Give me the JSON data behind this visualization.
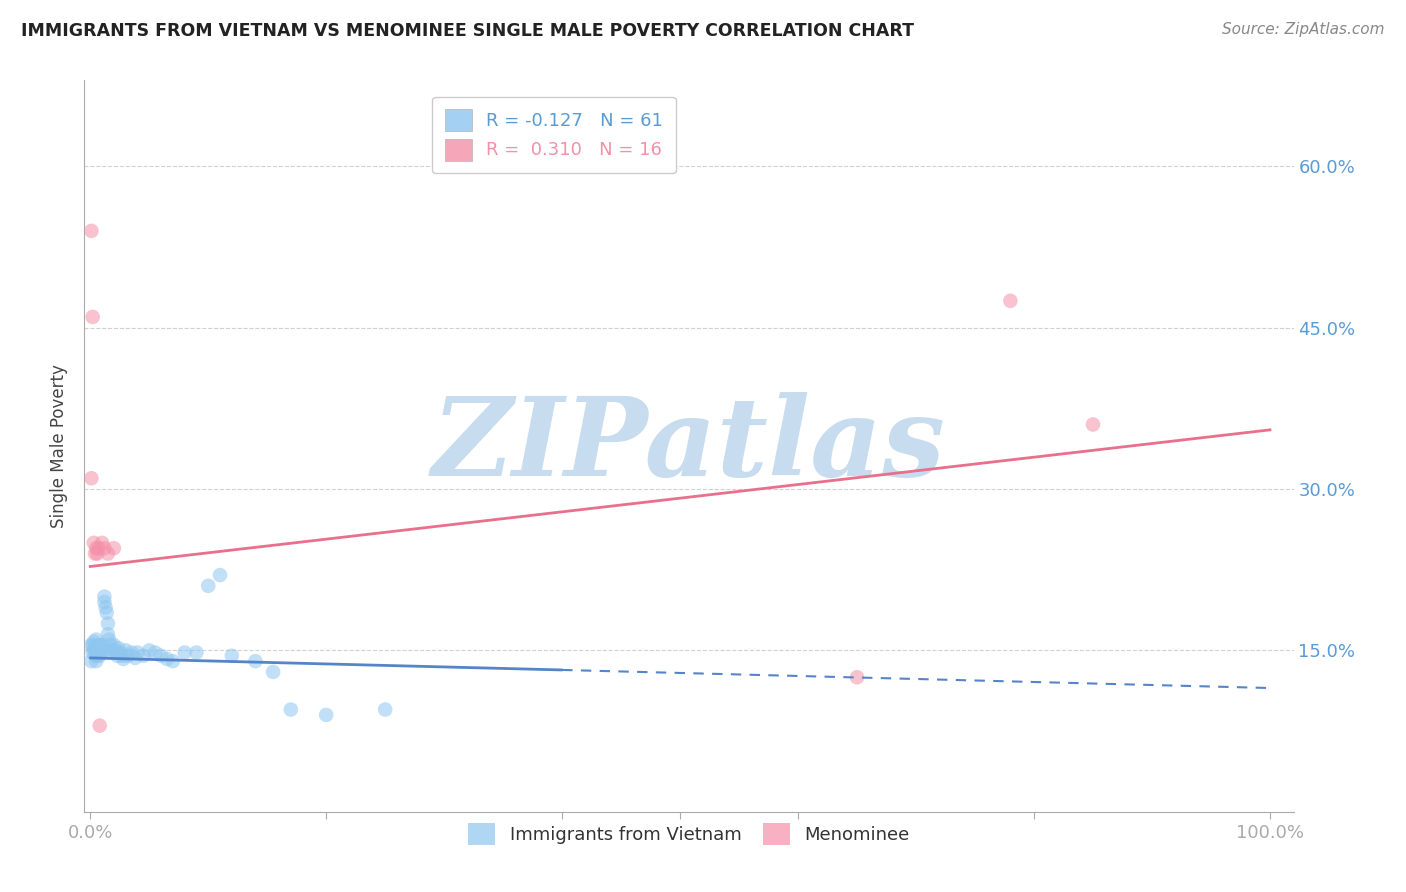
{
  "title": "IMMIGRANTS FROM VIETNAM VS MENOMINEE SINGLE MALE POVERTY CORRELATION CHART",
  "source": "Source: ZipAtlas.com",
  "ylabel": "Single Male Poverty",
  "blue_r": "-0.127",
  "blue_n": "61",
  "pink_r": "0.310",
  "pink_n": "16",
  "blue_color": "#8EC6F0",
  "pink_color": "#F490A8",
  "blue_line_color": "#5585C8",
  "pink_line_color": "#E8708A",
  "blue_label": "Immigrants from Vietnam",
  "pink_label": "Menominee",
  "axis_color": "#5B9BD5",
  "watermark": "ZIPatlas",
  "watermark_color": "#C8DCF0",
  "ylim": [
    0.0,
    0.68
  ],
  "xlim": [
    -0.005,
    1.02
  ],
  "blue_points_x": [
    0.001,
    0.001,
    0.002,
    0.002,
    0.003,
    0.003,
    0.004,
    0.004,
    0.005,
    0.005,
    0.005,
    0.006,
    0.006,
    0.007,
    0.007,
    0.008,
    0.008,
    0.009,
    0.009,
    0.01,
    0.01,
    0.011,
    0.012,
    0.012,
    0.013,
    0.014,
    0.015,
    0.015,
    0.016,
    0.017,
    0.018,
    0.019,
    0.02,
    0.021,
    0.022,
    0.023,
    0.024,
    0.025,
    0.027,
    0.028,
    0.03,
    0.032,
    0.035,
    0.038,
    0.04,
    0.045,
    0.05,
    0.055,
    0.06,
    0.065,
    0.07,
    0.08,
    0.09,
    0.1,
    0.11,
    0.12,
    0.14,
    0.155,
    0.17,
    0.2,
    0.25
  ],
  "blue_points_y": [
    0.14,
    0.155,
    0.148,
    0.155,
    0.15,
    0.158,
    0.145,
    0.152,
    0.14,
    0.148,
    0.16,
    0.152,
    0.145,
    0.155,
    0.148,
    0.15,
    0.145,
    0.148,
    0.155,
    0.148,
    0.155,
    0.15,
    0.2,
    0.195,
    0.19,
    0.185,
    0.175,
    0.165,
    0.16,
    0.155,
    0.15,
    0.148,
    0.155,
    0.15,
    0.148,
    0.145,
    0.152,
    0.148,
    0.145,
    0.142,
    0.15,
    0.145,
    0.148,
    0.143,
    0.148,
    0.145,
    0.15,
    0.148,
    0.145,
    0.142,
    0.14,
    0.148,
    0.148,
    0.21,
    0.22,
    0.145,
    0.14,
    0.13,
    0.095,
    0.09,
    0.095
  ],
  "pink_points_x": [
    0.001,
    0.001,
    0.002,
    0.003,
    0.004,
    0.005,
    0.006,
    0.007,
    0.008,
    0.01,
    0.012,
    0.015,
    0.02,
    0.65,
    0.78,
    0.85
  ],
  "pink_points_y": [
    0.54,
    0.31,
    0.46,
    0.25,
    0.24,
    0.245,
    0.24,
    0.245,
    0.08,
    0.25,
    0.245,
    0.24,
    0.245,
    0.125,
    0.475,
    0.36
  ],
  "blue_line_x0": 0.0,
  "blue_line_x_solid_end": 0.4,
  "blue_line_x1": 1.0,
  "blue_line_y0": 0.143,
  "blue_line_y_solid_end": 0.137,
  "blue_line_y1": 0.115,
  "pink_line_x0": 0.0,
  "pink_line_x1": 1.0,
  "pink_line_y0": 0.228,
  "pink_line_y1": 0.355
}
